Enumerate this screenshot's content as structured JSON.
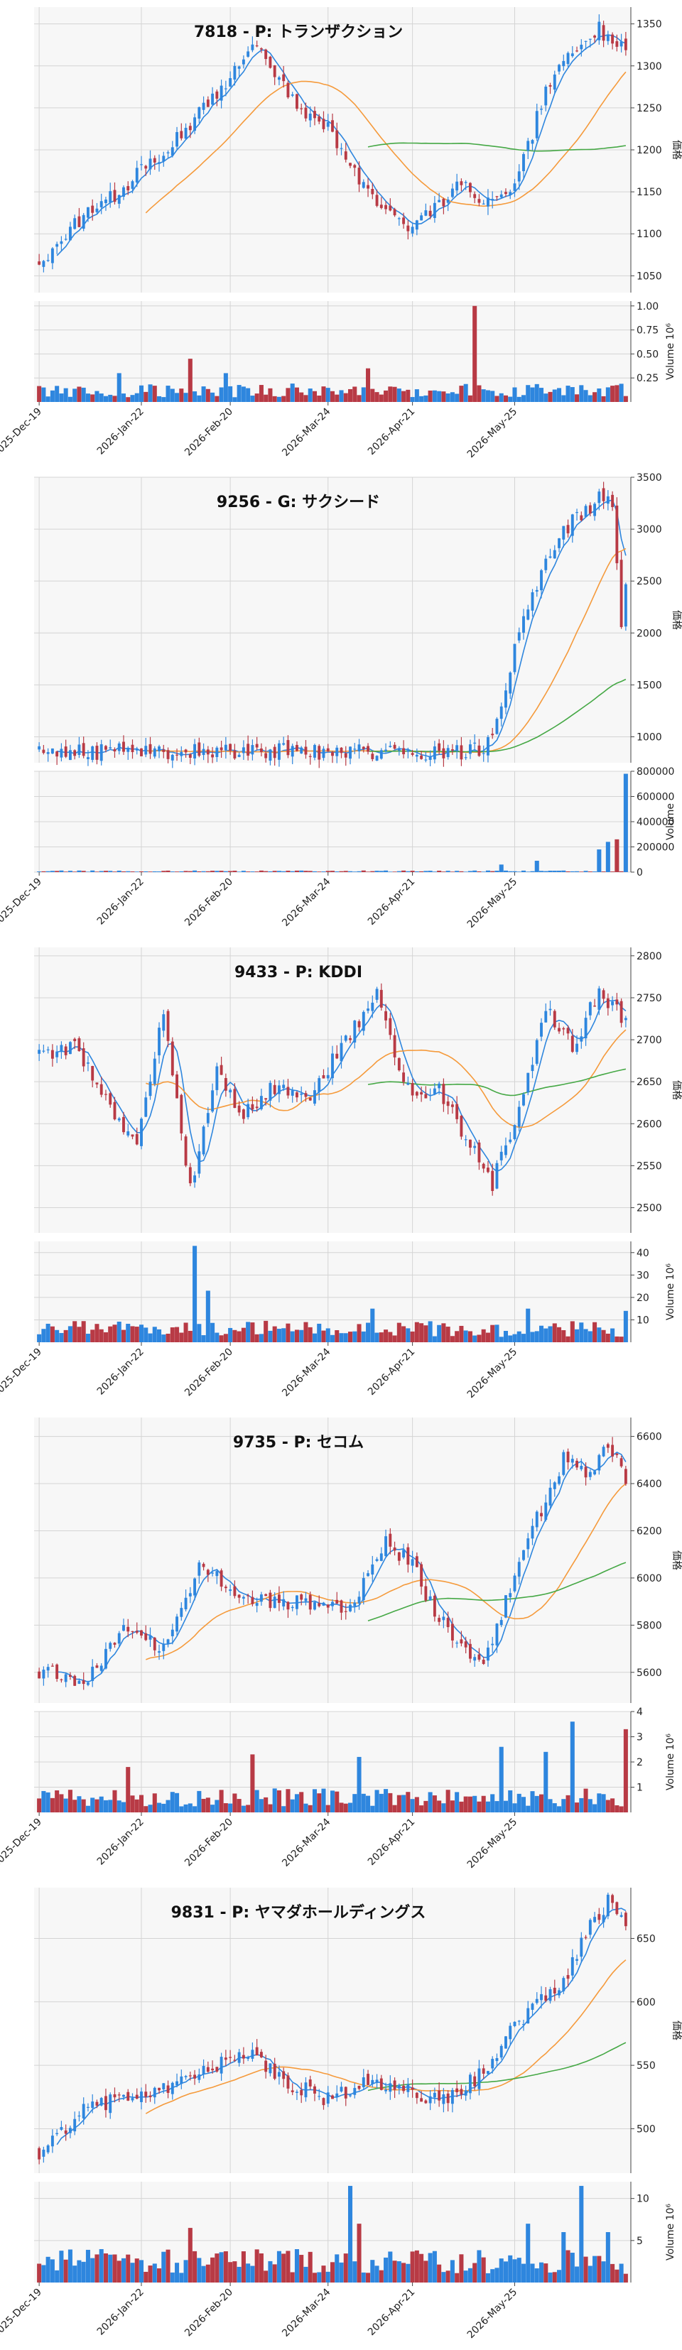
{
  "colors": {
    "up": "#2e86de",
    "down": "#b83a45",
    "ma5": "#2e86de",
    "ma25": "#f59a3b",
    "ma75": "#45a845"
  },
  "x_ticks": [
    "2025-Dec-19",
    "2026-Jan-22",
    "2026-Feb-20",
    "2026-Mar-24",
    "2026-Apr-21",
    "2026-May-25"
  ],
  "chart_data": [
    {
      "type": "candlestick",
      "title": "7818 - P: トランザクション",
      "ylabel": "価格",
      "volume_label": "Volume",
      "volume_exponent_label": "10⁶",
      "price_ticks": [
        1050,
        1100,
        1150,
        1200,
        1250,
        1300,
        1350
      ],
      "price_range": [
        1030,
        1370
      ],
      "volume_ticks": [
        0.25,
        0.5,
        0.75,
        1.0
      ],
      "volume_tick_labels": [
        "0.25",
        "0.50",
        "0.75",
        "1.00"
      ],
      "volume_range": [
        0,
        1.05
      ],
      "seed": 7818,
      "anchors": [
        [
          0,
          1068
        ],
        [
          8,
          1110
        ],
        [
          20,
          1160
        ],
        [
          30,
          1210
        ],
        [
          42,
          1280
        ],
        [
          48,
          1330
        ],
        [
          52,
          1290
        ],
        [
          58,
          1255
        ],
        [
          66,
          1220
        ],
        [
          74,
          1150
        ],
        [
          82,
          1110
        ],
        [
          88,
          1120
        ],
        [
          94,
          1160
        ],
        [
          102,
          1135
        ],
        [
          108,
          1170
        ],
        [
          114,
          1270
        ],
        [
          120,
          1320
        ],
        [
          126,
          1345
        ],
        [
          132,
          1315
        ]
      ],
      "vol_base": 0.12,
      "vol_spikes": [
        [
          34,
          0.45
        ],
        [
          98,
          1.0
        ],
        [
          18,
          0.3
        ],
        [
          42,
          0.3
        ],
        [
          74,
          0.35
        ]
      ],
      "ma": [
        5,
        25,
        75
      ]
    },
    {
      "type": "candlestick",
      "title": "9256 - G: サクシード",
      "ylabel": "価格",
      "volume_label": "Volume",
      "volume_exponent_label": "",
      "price_ticks": [
        1000,
        1500,
        2000,
        2500,
        3000,
        3500
      ],
      "price_range": [
        750,
        3500
      ],
      "volume_ticks": [
        0,
        200000,
        400000,
        600000,
        800000
      ],
      "volume_tick_labels": [
        "0",
        "200000",
        "400000",
        "600000",
        "800000"
      ],
      "volume_range": [
        0,
        800000
      ],
      "seed": 9256,
      "anchors": [
        [
          0,
          855
        ],
        [
          40,
          862
        ],
        [
          80,
          860
        ],
        [
          96,
          860
        ],
        [
          100,
          870
        ],
        [
          104,
          1300
        ],
        [
          108,
          2000
        ],
        [
          114,
          2700
        ],
        [
          120,
          3100
        ],
        [
          126,
          3300
        ],
        [
          129,
          3250
        ],
        [
          131,
          2050
        ],
        [
          132,
          2400
        ]
      ],
      "vol_base": 8000,
      "vol_spikes": [
        [
          104,
          60000
        ],
        [
          112,
          90000
        ],
        [
          126,
          180000
        ],
        [
          128,
          240000
        ],
        [
          130,
          260000
        ],
        [
          132,
          780000
        ]
      ],
      "ma": [
        5,
        25,
        75
      ]
    },
    {
      "type": "candlestick",
      "title": "9433 - P: KDDI",
      "ylabel": "価格",
      "volume_label": "Volume",
      "volume_exponent_label": "10⁶",
      "price_ticks": [
        2500,
        2550,
        2600,
        2650,
        2700,
        2750,
        2800
      ],
      "price_range": [
        2470,
        2810
      ],
      "volume_ticks": [
        10,
        20,
        30,
        40
      ],
      "volume_tick_labels": [
        "10",
        "20",
        "30",
        "40"
      ],
      "volume_range": [
        0,
        45
      ],
      "seed": 9433,
      "anchors": [
        [
          0,
          2680
        ],
        [
          8,
          2690
        ],
        [
          16,
          2620
        ],
        [
          22,
          2580
        ],
        [
          28,
          2740
        ],
        [
          34,
          2520
        ],
        [
          40,
          2660
        ],
        [
          46,
          2610
        ],
        [
          52,
          2640
        ],
        [
          60,
          2630
        ],
        [
          68,
          2690
        ],
        [
          76,
          2760
        ],
        [
          82,
          2640
        ],
        [
          90,
          2640
        ],
        [
          96,
          2580
        ],
        [
          102,
          2530
        ],
        [
          108,
          2620
        ],
        [
          114,
          2740
        ],
        [
          120,
          2690
        ],
        [
          126,
          2760
        ],
        [
          132,
          2720
        ]
      ],
      "vol_base": 6,
      "vol_spikes": [
        [
          35,
          43
        ],
        [
          38,
          23
        ],
        [
          75,
          15
        ],
        [
          110,
          15
        ],
        [
          132,
          14
        ]
      ],
      "ma": [
        5,
        25,
        75
      ]
    },
    {
      "type": "candlestick",
      "title": "9735 - P: セコム",
      "ylabel": "価格",
      "volume_label": "Volume",
      "volume_exponent_label": "10⁶",
      "price_ticks": [
        5600,
        5800,
        6000,
        6200,
        6400,
        6600
      ],
      "price_range": [
        5470,
        6680
      ],
      "volume_ticks": [
        1,
        2,
        3,
        4
      ],
      "volume_tick_labels": [
        "1",
        "2",
        "3",
        "4"
      ],
      "volume_range": [
        0,
        4
      ],
      "seed": 9735,
      "anchors": [
        [
          0,
          5610
        ],
        [
          10,
          5560
        ],
        [
          20,
          5800
        ],
        [
          28,
          5700
        ],
        [
          36,
          6050
        ],
        [
          44,
          5950
        ],
        [
          52,
          5900
        ],
        [
          60,
          5900
        ],
        [
          70,
          5880
        ],
        [
          78,
          6150
        ],
        [
          84,
          6050
        ],
        [
          90,
          5820
        ],
        [
          100,
          5620
        ],
        [
          106,
          5950
        ],
        [
          112,
          6250
        ],
        [
          118,
          6500
        ],
        [
          124,
          6450
        ],
        [
          128,
          6580
        ],
        [
          132,
          6400
        ]
      ],
      "vol_base": 0.6,
      "vol_spikes": [
        [
          20,
          1.8
        ],
        [
          48,
          2.3
        ],
        [
          72,
          2.2
        ],
        [
          104,
          2.6
        ],
        [
          114,
          2.4
        ],
        [
          120,
          3.6
        ],
        [
          132,
          3.3
        ]
      ],
      "ma": [
        5,
        25,
        75
      ]
    },
    {
      "type": "candlestick",
      "title": "9831 - P: ヤマダホールディングス",
      "ylabel": "価格",
      "volume_label": "Volume",
      "volume_exponent_label": "10⁶",
      "price_ticks": [
        500,
        550,
        600,
        650
      ],
      "price_range": [
        465,
        690
      ],
      "volume_ticks": [
        5,
        10
      ],
      "volume_tick_labels": [
        "5",
        "10"
      ],
      "volume_range": [
        0,
        12
      ],
      "seed": 9831,
      "anchors": [
        [
          0,
          482
        ],
        [
          10,
          515
        ],
        [
          20,
          525
        ],
        [
          30,
          535
        ],
        [
          40,
          550
        ],
        [
          48,
          560
        ],
        [
          54,
          540
        ],
        [
          60,
          530
        ],
        [
          66,
          522
        ],
        [
          74,
          540
        ],
        [
          82,
          530
        ],
        [
          92,
          522
        ],
        [
          100,
          545
        ],
        [
          106,
          575
        ],
        [
          112,
          600
        ],
        [
          118,
          615
        ],
        [
          124,
          660
        ],
        [
          128,
          680
        ],
        [
          132,
          665
        ]
      ],
      "vol_base": 2.5,
      "vol_spikes": [
        [
          34,
          6.5
        ],
        [
          70,
          11.5
        ],
        [
          72,
          7
        ],
        [
          110,
          7
        ],
        [
          118,
          6
        ],
        [
          122,
          11.5
        ],
        [
          128,
          6
        ]
      ],
      "ma": [
        5,
        25,
        75
      ]
    }
  ]
}
